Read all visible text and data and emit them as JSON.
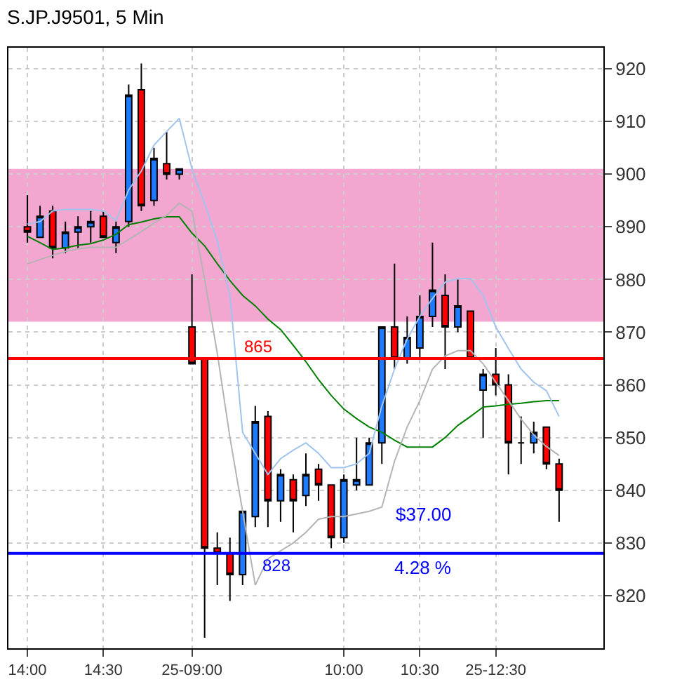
{
  "chart_data": {
    "type": "candlestick",
    "title": "S.JP.J9501, 5 Min",
    "categories": [
      "14:00",
      null,
      null,
      null,
      null,
      null,
      "14:30",
      null,
      null,
      null,
      null,
      null,
      null,
      "25-09:00",
      null,
      null,
      null,
      null,
      null,
      null,
      null,
      null,
      null,
      null,
      null,
      "10:00",
      null,
      null,
      null,
      null,
      null,
      "10:30",
      null,
      null,
      null,
      null,
      null,
      "25-12:30",
      null,
      null,
      null,
      null,
      null
    ],
    "series": [
      {
        "type": "line",
        "color": "#008000",
        "values": [
          888.2,
          887,
          885.7,
          886,
          886.5,
          886.8,
          887.5,
          888.6,
          890.4,
          890.9,
          891.5,
          891.9,
          891.9,
          888.8,
          886.4,
          883,
          879.8,
          877,
          875,
          872.5,
          870.5,
          867.5,
          864.4,
          861,
          858,
          855.4,
          853.6,
          852,
          851,
          849.5,
          848.2,
          848.2,
          848.2,
          850,
          852.3,
          854,
          855.8,
          856,
          856.3,
          856.5,
          856.8,
          857,
          857
        ]
      },
      {
        "type": "line",
        "color": "#a0c4ee",
        "values": [
          890.5,
          891,
          893,
          893.3,
          893.3,
          893.3,
          893,
          891.2,
          897,
          900.6,
          905.5,
          908.1,
          910.6,
          901,
          894.4,
          887.3,
          877,
          851,
          847,
          843,
          846,
          847.6,
          849,
          847,
          844.3,
          844.3,
          845,
          847,
          856,
          863,
          868.7,
          873,
          876.4,
          879.5,
          880.2,
          880.2,
          877,
          871,
          866.9,
          863,
          860.5,
          858.9,
          854
        ]
      },
      {
        "type": "line",
        "color": "#b4b4b4",
        "values": [
          883,
          883.8,
          884.6,
          885.3,
          885.8,
          886.1,
          886.1,
          886.1,
          887.6,
          889.1,
          890.7,
          892.2,
          894.5,
          893,
          880,
          866,
          850,
          836,
          822,
          827,
          828.5,
          830,
          832,
          834.5,
          835,
          835,
          835.5,
          836,
          836.8,
          845.5,
          852,
          857,
          863,
          865.5,
          866.5,
          866.5,
          864,
          860.5,
          857,
          853.5,
          850.5,
          848.3,
          846.6
        ]
      },
      {
        "ohlc": [
          [
            890,
            896,
            887,
            889
          ],
          [
            888,
            894,
            888,
            892
          ],
          [
            893,
            894,
            884,
            886
          ],
          [
            886,
            891,
            885,
            889
          ],
          [
            889,
            892,
            886,
            890
          ],
          [
            890,
            893,
            887,
            891
          ],
          [
            892,
            893,
            888,
            888
          ],
          [
            887,
            891,
            885,
            890
          ],
          [
            891,
            917,
            890,
            915
          ],
          [
            916,
            921,
            893,
            894
          ],
          [
            895,
            905,
            894,
            903
          ],
          [
            902,
            908,
            899,
            900
          ],
          [
            900,
            901,
            899,
            901
          ],
          [
            871,
            881,
            864,
            864
          ],
          [
            865,
            865,
            812,
            829
          ],
          [
            829,
            832,
            822,
            828
          ],
          [
            828,
            831,
            819,
            824
          ],
          [
            824,
            836,
            822,
            836
          ],
          [
            835,
            856,
            833,
            853
          ],
          [
            854,
            855,
            833,
            838
          ],
          [
            838,
            844,
            834,
            843
          ],
          [
            842,
            843,
            832,
            838
          ],
          [
            839,
            847,
            837,
            843
          ],
          [
            844,
            845,
            838,
            841
          ],
          [
            841,
            841,
            829,
            831
          ],
          [
            831,
            843,
            830,
            842
          ],
          [
            841,
            850,
            840,
            842
          ],
          [
            841,
            850,
            841,
            849
          ],
          [
            849,
            871,
            845,
            871
          ],
          [
            871,
            883,
            863,
            865
          ],
          [
            865,
            873,
            864,
            869
          ],
          [
            867,
            877,
            865,
            873
          ],
          [
            873,
            887,
            871,
            878
          ],
          [
            877,
            881,
            863,
            871
          ],
          [
            871,
            880,
            870,
            875
          ],
          [
            874,
            874,
            865,
            865
          ],
          [
            859,
            863,
            850,
            862
          ],
          [
            862,
            867,
            858,
            860
          ],
          [
            860,
            862,
            843,
            849
          ],
          [
            849,
            854,
            845,
            849
          ],
          [
            849,
            853,
            847,
            851
          ],
          [
            852,
            852,
            844,
            845
          ],
          [
            845,
            846,
            834,
            840
          ]
        ],
        "colors": [
          "#ff0000",
          "#1e7bff",
          "#ff0000",
          "#1e7bff",
          "#1e7bff",
          "#1e7bff",
          "#ff0000",
          "#1e7bff",
          "#1e7bff",
          "#ff0000",
          "#1e7bff",
          "#ff0000",
          "#1e7bff",
          "#ff0000",
          "#ff0000",
          "#ff0000",
          "#ff0000",
          "#1e7bff",
          "#1e7bff",
          "#ff0000",
          "#1e7bff",
          "#ff0000",
          "#1e7bff",
          "#ff0000",
          "#ff0000",
          "#1e7bff",
          "#1e7bff",
          "#1e7bff",
          "#1e7bff",
          "#ff0000",
          "#1e7bff",
          "#1e7bff",
          "#1e7bff",
          "#ff0000",
          "#1e7bff",
          "#ff0000",
          "#1e7bff",
          "#ff0000",
          "#ff0000",
          "#000000",
          "#1e7bff",
          "#ff0000",
          "#ff0000"
        ]
      }
    ],
    "ylim": [
      810,
      924
    ],
    "yticks": [
      820,
      830,
      840,
      850,
      860,
      870,
      880,
      890,
      900,
      910,
      920
    ],
    "grid": true,
    "bands": [
      {
        "axis": "y",
        "from": 872,
        "to": 901,
        "color": "#f096c8"
      }
    ],
    "ref_lines": [
      {
        "axis": "y",
        "value": 865,
        "label": "865",
        "color": "#ff0000"
      },
      {
        "axis": "y",
        "value": 828,
        "label": "828",
        "color": "#0000ff"
      }
    ],
    "annotations": [
      "$37.00",
      "4.28 %"
    ]
  }
}
